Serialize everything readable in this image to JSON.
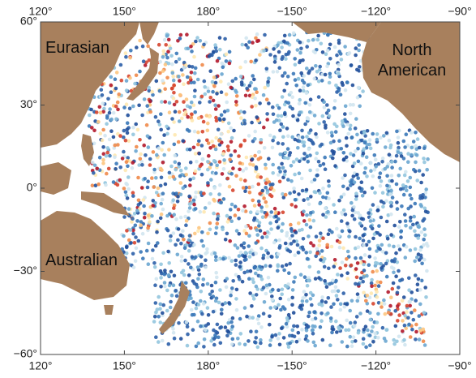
{
  "map": {
    "lon_ticks": [
      {
        "value": 120,
        "label": "120°"
      },
      {
        "value": 150,
        "label": "150°"
      },
      {
        "value": 180,
        "label": "180°"
      },
      {
        "value": -150,
        "label": "−150°"
      },
      {
        "value": -120,
        "label": "−120°"
      },
      {
        "value": -90,
        "label": "−90°"
      }
    ],
    "lat_ticks": [
      {
        "value": 60,
        "label": "60°"
      },
      {
        "value": 30,
        "label": "30°"
      },
      {
        "value": 0,
        "label": "0°"
      },
      {
        "value": -30,
        "label": "−30°"
      },
      {
        "value": -60,
        "label": "−60°"
      }
    ],
    "plates": [
      "Eurasian",
      "North",
      "American",
      "Australian"
    ]
  }
}
